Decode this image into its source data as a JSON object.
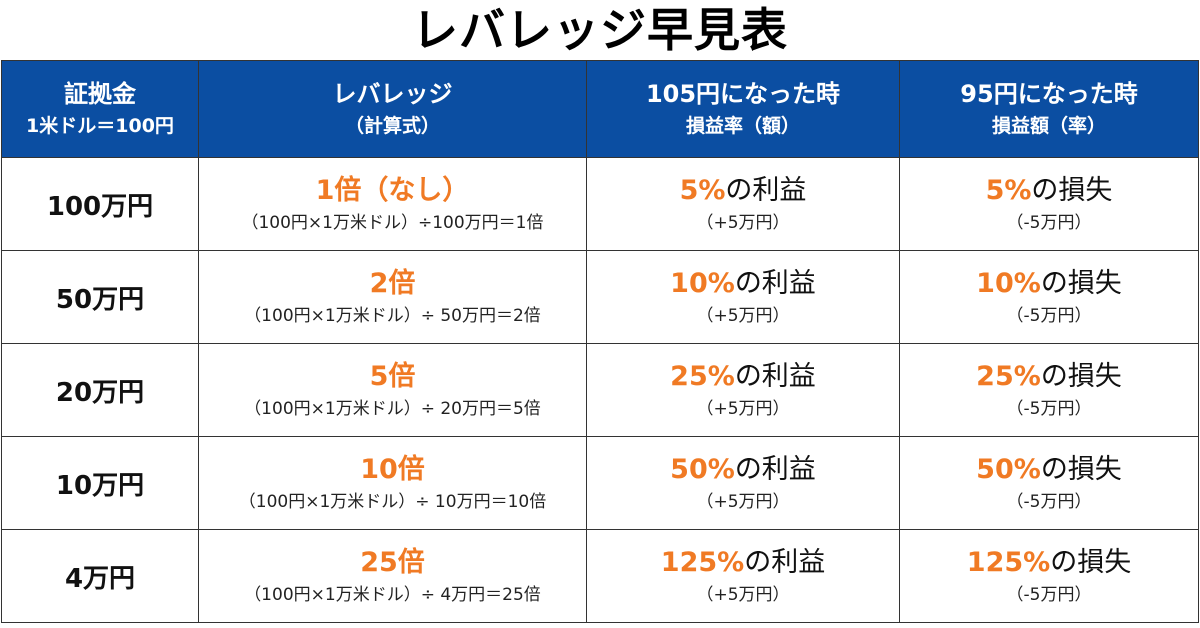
{
  "title": "レバレッジ早見表",
  "header": {
    "col1": {
      "main": "証拠金",
      "sub": "1米ドル＝100円"
    },
    "col2": {
      "main": "レバレッジ",
      "sub": "（計算式）"
    },
    "col3": {
      "main": "105円になった時",
      "sub": "損益率（額）"
    },
    "col4": {
      "main": "95円になった時",
      "sub": "損益額（率）"
    }
  },
  "rows": [
    {
      "margin": "100万円",
      "leverage": "1倍（なし）",
      "formula": "（100円×1万米ドル）÷100万円＝1倍",
      "gain_pct": "5%",
      "gain_label": "の利益",
      "gain_amount": "（+5万円）",
      "loss_pct": "5%",
      "loss_label": "の損失",
      "loss_amount": "（-5万円）"
    },
    {
      "margin": "50万円",
      "leverage": "2倍",
      "formula": "（100円×1万米ドル）÷ 50万円＝2倍",
      "gain_pct": "10%",
      "gain_label": "の利益",
      "gain_amount": "（+5万円）",
      "loss_pct": "10%",
      "loss_label": "の損失",
      "loss_amount": "（-5万円）"
    },
    {
      "margin": "20万円",
      "leverage": "5倍",
      "formula": "（100円×1万米ドル）÷ 20万円＝5倍",
      "gain_pct": "25%",
      "gain_label": "の利益",
      "gain_amount": "（+5万円）",
      "loss_pct": "25%",
      "loss_label": "の損失",
      "loss_amount": "（-5万円）"
    },
    {
      "margin": "10万円",
      "leverage": "10倍",
      "formula": "（100円×1万米ドル）÷ 10万円＝10倍",
      "gain_pct": "50%",
      "gain_label": "の利益",
      "gain_amount": "（+5万円）",
      "loss_pct": "50%",
      "loss_label": "の損失",
      "loss_amount": "（-5万円）"
    },
    {
      "margin": "4万円",
      "leverage": "25倍",
      "formula": "（100円×1万米ドル）÷ 4万円＝25倍",
      "gain_pct": "125%",
      "gain_label": "の利益",
      "gain_amount": "（+5万円）",
      "loss_pct": "125%",
      "loss_label": "の損失",
      "loss_amount": "（-5万円）"
    }
  ],
  "colors": {
    "header_bg": "#0b4ea2",
    "header_text": "#ffffff",
    "accent": "#f07a24",
    "border": "#333333"
  }
}
